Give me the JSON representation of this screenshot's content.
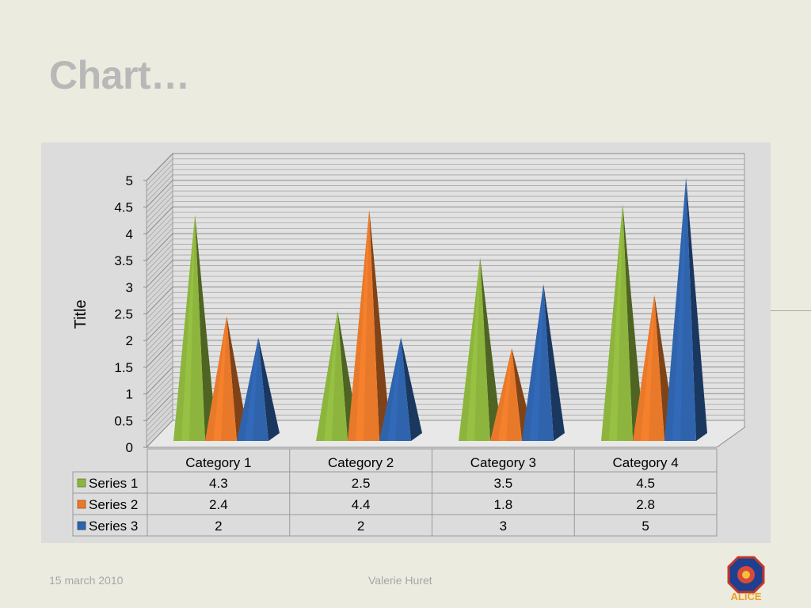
{
  "slide": {
    "title": "Chart…",
    "footer_date": "15 march 2010",
    "footer_author": "Valerie Huret",
    "logo_text": "ALICE"
  },
  "chart_data": {
    "type": "bar",
    "title": "",
    "ylabel": "Title",
    "xlabel": "",
    "categories": [
      "Category 1",
      "Category 2",
      "Category 3",
      "Category 4"
    ],
    "ylim": [
      0,
      5
    ],
    "yticks": [
      "0",
      "0.5",
      "1",
      "1.5",
      "2",
      "2.5",
      "3",
      "3.5",
      "4",
      "4.5",
      "5"
    ],
    "grid": true,
    "data_table": true,
    "series": [
      {
        "name": "Series 1",
        "values": [
          4.3,
          2.5,
          3.5,
          4.5
        ],
        "color": "#8db53e"
      },
      {
        "name": "Series 2",
        "values": [
          2.4,
          4.4,
          1.8,
          2.8
        ],
        "color": "#e9792a"
      },
      {
        "name": "Series 3",
        "values": [
          2,
          2,
          3,
          5
        ],
        "color": "#2f64ad"
      }
    ],
    "table_values": [
      [
        "4.3",
        "2.5",
        "3.5",
        "4.5"
      ],
      [
        "2.4",
        "4.4",
        "1.8",
        "2.8"
      ],
      [
        "2",
        "2",
        "3",
        "5"
      ]
    ]
  }
}
